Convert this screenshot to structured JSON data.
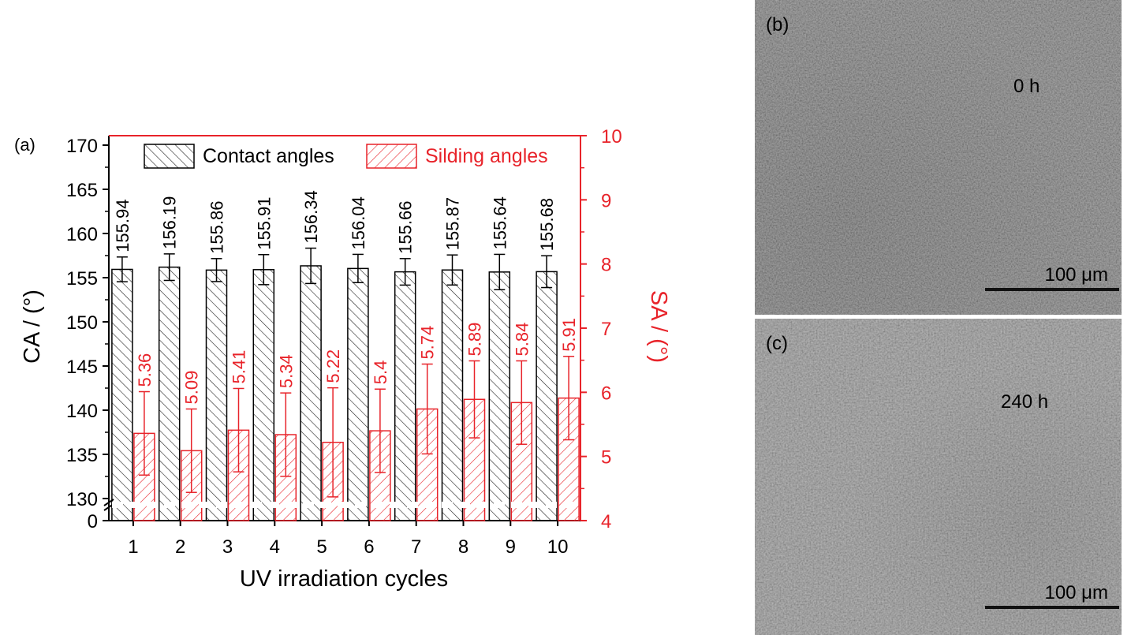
{
  "chart_data": {
    "type": "bar",
    "panel_label": "(a)",
    "xlabel": "UV irradiation cycles",
    "ylabel_left": "CA / (°)",
    "ylabel_right": "SA / (°)",
    "categories": [
      "1",
      "2",
      "3",
      "4",
      "5",
      "6",
      "7",
      "8",
      "9",
      "10"
    ],
    "left_axis": {
      "broken": true,
      "ticks": [
        "0",
        "130",
        "135",
        "140",
        "145",
        "150",
        "155",
        "160",
        "165",
        "170"
      ],
      "ylim": [
        130,
        170
      ]
    },
    "right_axis": {
      "ticks": [
        "4",
        "5",
        "6",
        "7",
        "8",
        "9",
        "10"
      ],
      "ylim": [
        4,
        10
      ]
    },
    "legend_position": "top",
    "series": [
      {
        "name": "Contact angles",
        "axis": "left",
        "color": "#222222",
        "values": [
          155.94,
          156.19,
          155.86,
          155.91,
          156.34,
          156.04,
          155.66,
          155.87,
          155.64,
          155.68
        ],
        "errors": [
          1.4,
          1.5,
          1.3,
          1.7,
          2.0,
          1.6,
          1.5,
          1.7,
          2.0,
          1.8
        ],
        "labels": [
          "155.94",
          "156.19",
          "155.86",
          "155.91",
          "156.34",
          "156.04",
          "155.66",
          "155.87",
          "155.64",
          "155.68"
        ]
      },
      {
        "name": "Silding angles",
        "axis": "right",
        "color": "#e8232a",
        "values": [
          5.36,
          5.09,
          5.41,
          5.34,
          5.22,
          5.4,
          5.74,
          5.89,
          5.84,
          5.91
        ],
        "errors": [
          0.65,
          0.65,
          0.65,
          0.65,
          0.85,
          0.65,
          0.7,
          0.6,
          0.65,
          0.65
        ],
        "labels": [
          "5.36",
          "5.09",
          "5.41",
          "5.34",
          "5.22",
          "5.4",
          "5.74",
          "5.89",
          "5.84",
          "5.91"
        ]
      }
    ]
  },
  "sem": {
    "top": {
      "label": "(b)",
      "time": "0 h",
      "scale": "100 μm"
    },
    "bottom": {
      "label": "(c)",
      "time": "240 h",
      "scale": "100 μm"
    }
  },
  "colors": {
    "red": "#e8232a",
    "black": "#000000",
    "sem_gray": "#6e6e6e"
  }
}
